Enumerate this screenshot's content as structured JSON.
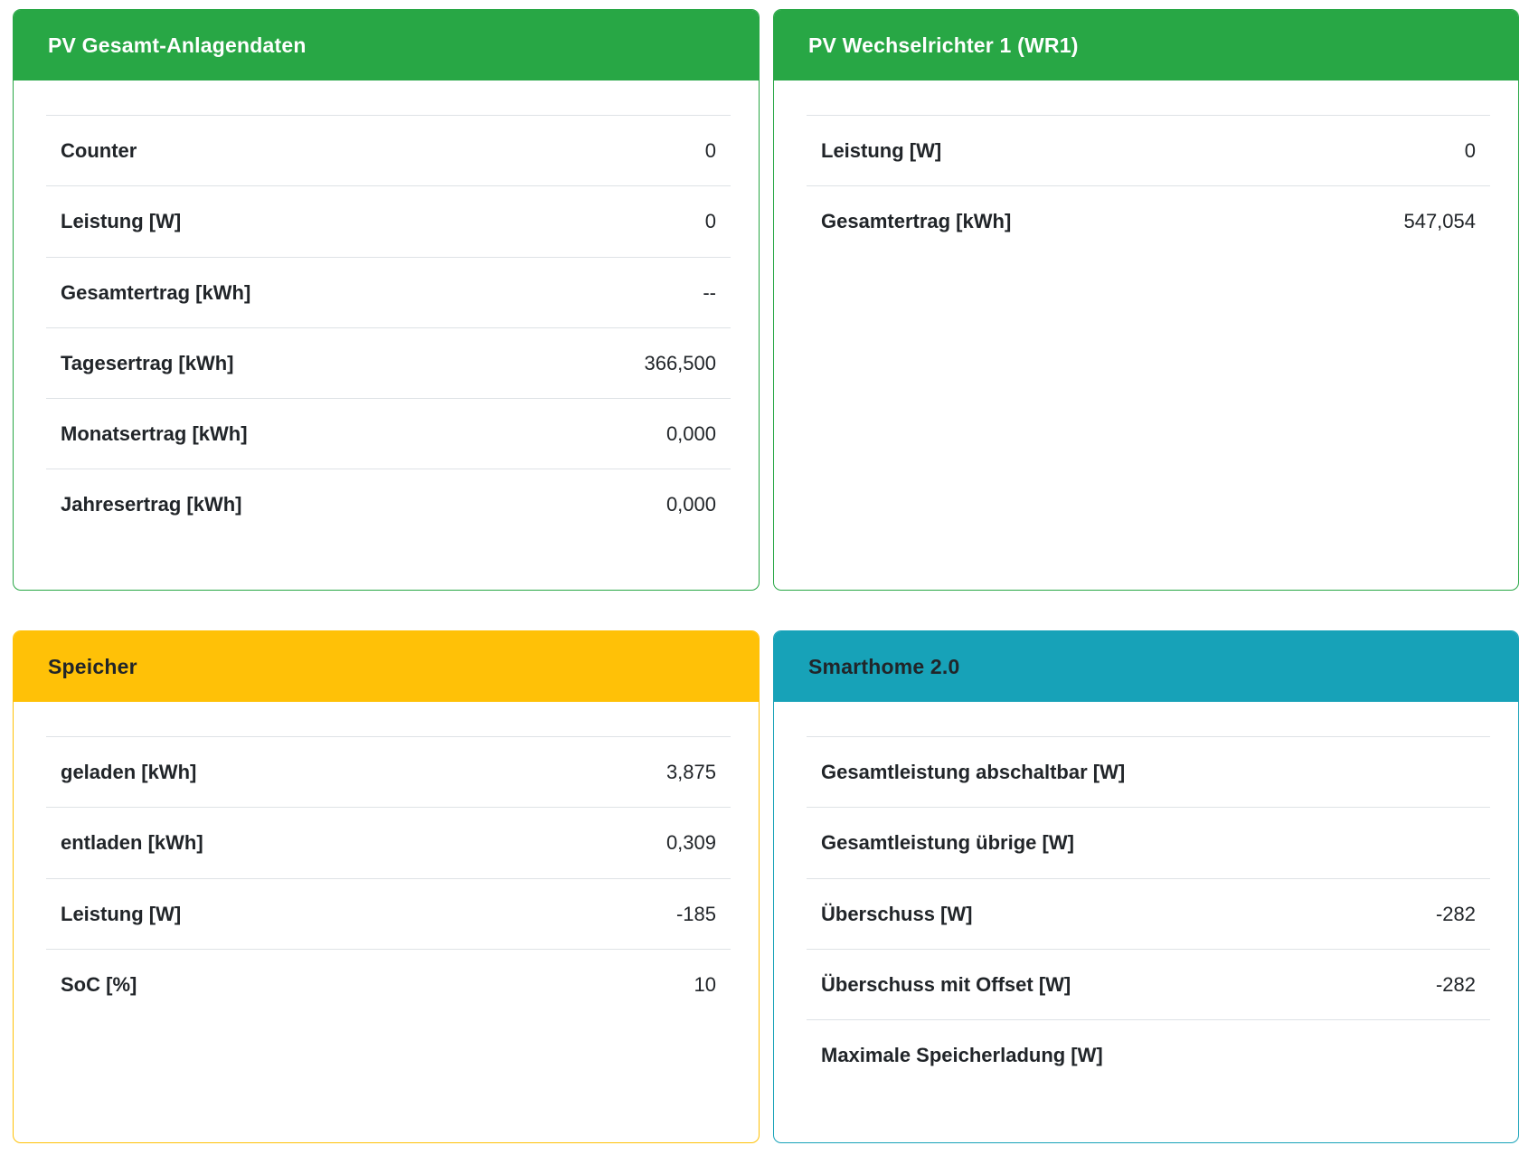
{
  "page": {
    "background": "#ffffff",
    "divider_color": "#dee2e6",
    "text_color": "#212529"
  },
  "cards": [
    {
      "id": "pv-gesamt-anlagendaten",
      "title": "PV Gesamt-Anlagendaten",
      "accent": "#28a745",
      "header_text_color": "#ffffff",
      "rows": [
        {
          "label": "Counter",
          "value": "0"
        },
        {
          "label": "Leistung [W]",
          "value": "0"
        },
        {
          "label": "Gesamtertrag [kWh]",
          "value": "--"
        },
        {
          "label": "Tagesertrag [kWh]",
          "value": "366,500"
        },
        {
          "label": "Monatsertrag [kWh]",
          "value": "0,000"
        },
        {
          "label": "Jahresertrag [kWh]",
          "value": "0,000"
        }
      ]
    },
    {
      "id": "pv-wechselrichter-1",
      "title": "PV Wechselrichter 1 (WR1)",
      "accent": "#28a745",
      "header_text_color": "#ffffff",
      "rows": [
        {
          "label": "Leistung [W]",
          "value": "0"
        },
        {
          "label": "Gesamtertrag [kWh]",
          "value": "547,054"
        }
      ]
    },
    {
      "id": "speicher",
      "title": "Speicher",
      "accent": "#ffc107",
      "header_text_color": "#212529",
      "rows": [
        {
          "label": "geladen [kWh]",
          "value": "3,875"
        },
        {
          "label": "entladen [kWh]",
          "value": "0,309"
        },
        {
          "label": "Leistung [W]",
          "value": "-185"
        },
        {
          "label": "SoC [%]",
          "value": "10"
        }
      ]
    },
    {
      "id": "smarthome-2-0",
      "title": "Smarthome 2.0",
      "accent": "#17a2b8",
      "header_text_color": "#212529",
      "rows": [
        {
          "label": "Gesamtleistung abschaltbar [W]",
          "value": ""
        },
        {
          "label": "Gesamtleistung übrige [W]",
          "value": ""
        },
        {
          "label": "Überschuss [W]",
          "value": "-282"
        },
        {
          "label": "Überschuss mit Offset [W]",
          "value": "-282"
        },
        {
          "label": "Maximale Speicherladung [W]",
          "value": ""
        }
      ]
    }
  ]
}
